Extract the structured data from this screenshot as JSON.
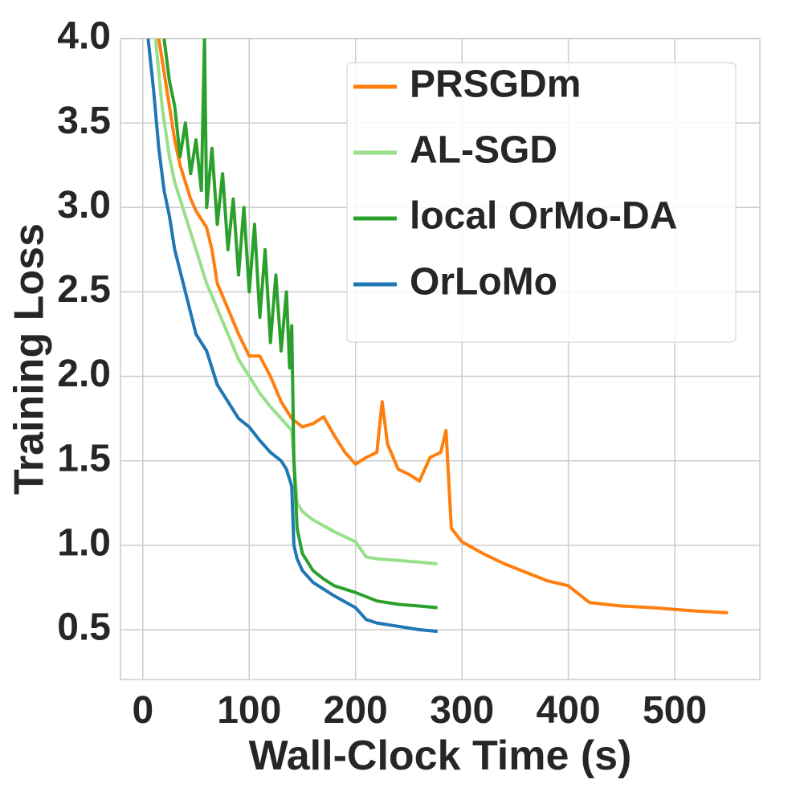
{
  "chart_data": {
    "type": "line",
    "xlabel": "Wall-Clock Time (s)",
    "ylabel": "Training Loss",
    "xlim": [
      -21,
      580
    ],
    "xticks": [
      0,
      100,
      200,
      300,
      400,
      500
    ],
    "ylim": [
      0.205,
      4.0
    ],
    "yticks": [
      {
        "value": 0.5,
        "label": "0.5"
      },
      {
        "value": 1,
        "label": "1.0"
      },
      1.5,
      {
        "value": 2,
        "label": "2.0"
      },
      2.5,
      {
        "value": 3,
        "label": "3.0"
      },
      3.5,
      {
        "value": 4,
        "label": "4.0"
      }
    ],
    "grid": true,
    "legend": "upper right",
    "series": [
      {
        "name": "PRSGDm",
        "color": "#ff7f0e",
        "x": [
          15,
          20,
          25,
          30,
          35,
          40,
          45,
          50,
          55,
          60,
          65,
          70,
          80,
          90,
          100,
          110,
          120,
          130,
          140,
          150,
          160,
          170,
          180,
          190,
          200,
          210,
          220,
          225,
          230,
          240,
          250,
          260,
          270,
          280,
          285,
          290,
          300,
          320,
          340,
          360,
          380,
          400,
          420,
          450,
          480,
          500,
          520,
          550
        ],
        "values": [
          4.0,
          3.8,
          3.6,
          3.4,
          3.25,
          3.15,
          3.05,
          2.98,
          2.93,
          2.88,
          2.75,
          2.55,
          2.4,
          2.25,
          2.12,
          2.12,
          2.0,
          1.85,
          1.75,
          1.7,
          1.72,
          1.76,
          1.65,
          1.55,
          1.48,
          1.52,
          1.55,
          1.85,
          1.6,
          1.45,
          1.42,
          1.38,
          1.52,
          1.55,
          1.68,
          1.1,
          1.02,
          0.95,
          0.89,
          0.84,
          0.79,
          0.76,
          0.66,
          0.64,
          0.63,
          0.62,
          0.61,
          0.6
        ]
      },
      {
        "name": "AL-SGD",
        "color": "#98df8a",
        "x": [
          12,
          18,
          25,
          30,
          40,
          50,
          60,
          70,
          80,
          90,
          100,
          110,
          120,
          130,
          140,
          145,
          150,
          160,
          180,
          200,
          210,
          220,
          240,
          260,
          277
        ],
        "values": [
          4.0,
          3.6,
          3.3,
          3.15,
          2.95,
          2.75,
          2.55,
          2.4,
          2.25,
          2.1,
          2.0,
          1.9,
          1.82,
          1.75,
          1.68,
          1.25,
          1.2,
          1.15,
          1.08,
          1.02,
          0.93,
          0.92,
          0.91,
          0.9,
          0.89
        ]
      },
      {
        "name": "local OrMo-DA",
        "color": "#2ca02c",
        "x": [
          20,
          25,
          30,
          35,
          40,
          45,
          50,
          55,
          58,
          60,
          65,
          70,
          75,
          80,
          85,
          90,
          95,
          100,
          105,
          110,
          115,
          120,
          125,
          130,
          135,
          138,
          140,
          142,
          145,
          150,
          160,
          170,
          180,
          200,
          220,
          240,
          260,
          277
        ],
        "values": [
          4.0,
          3.75,
          3.6,
          3.3,
          3.5,
          3.2,
          3.4,
          3.1,
          4.0,
          3.0,
          3.35,
          2.9,
          3.2,
          2.75,
          3.05,
          2.6,
          3.0,
          2.5,
          2.9,
          2.35,
          2.75,
          2.2,
          2.6,
          2.15,
          2.5,
          2.05,
          2.3,
          1.5,
          1.1,
          0.95,
          0.85,
          0.8,
          0.76,
          0.72,
          0.67,
          0.65,
          0.64,
          0.63
        ]
      },
      {
        "name": "OrLoMo",
        "color": "#1f77b4",
        "x": [
          5,
          10,
          15,
          20,
          25,
          30,
          40,
          50,
          60,
          70,
          80,
          90,
          100,
          110,
          120,
          130,
          135,
          140,
          142,
          145,
          150,
          160,
          180,
          200,
          210,
          220,
          240,
          260,
          277
        ],
        "values": [
          4.0,
          3.7,
          3.35,
          3.1,
          2.95,
          2.75,
          2.5,
          2.25,
          2.15,
          1.95,
          1.85,
          1.75,
          1.7,
          1.62,
          1.55,
          1.5,
          1.45,
          1.35,
          1.0,
          0.92,
          0.85,
          0.78,
          0.7,
          0.63,
          0.56,
          0.54,
          0.52,
          0.5,
          0.49
        ]
      }
    ]
  }
}
